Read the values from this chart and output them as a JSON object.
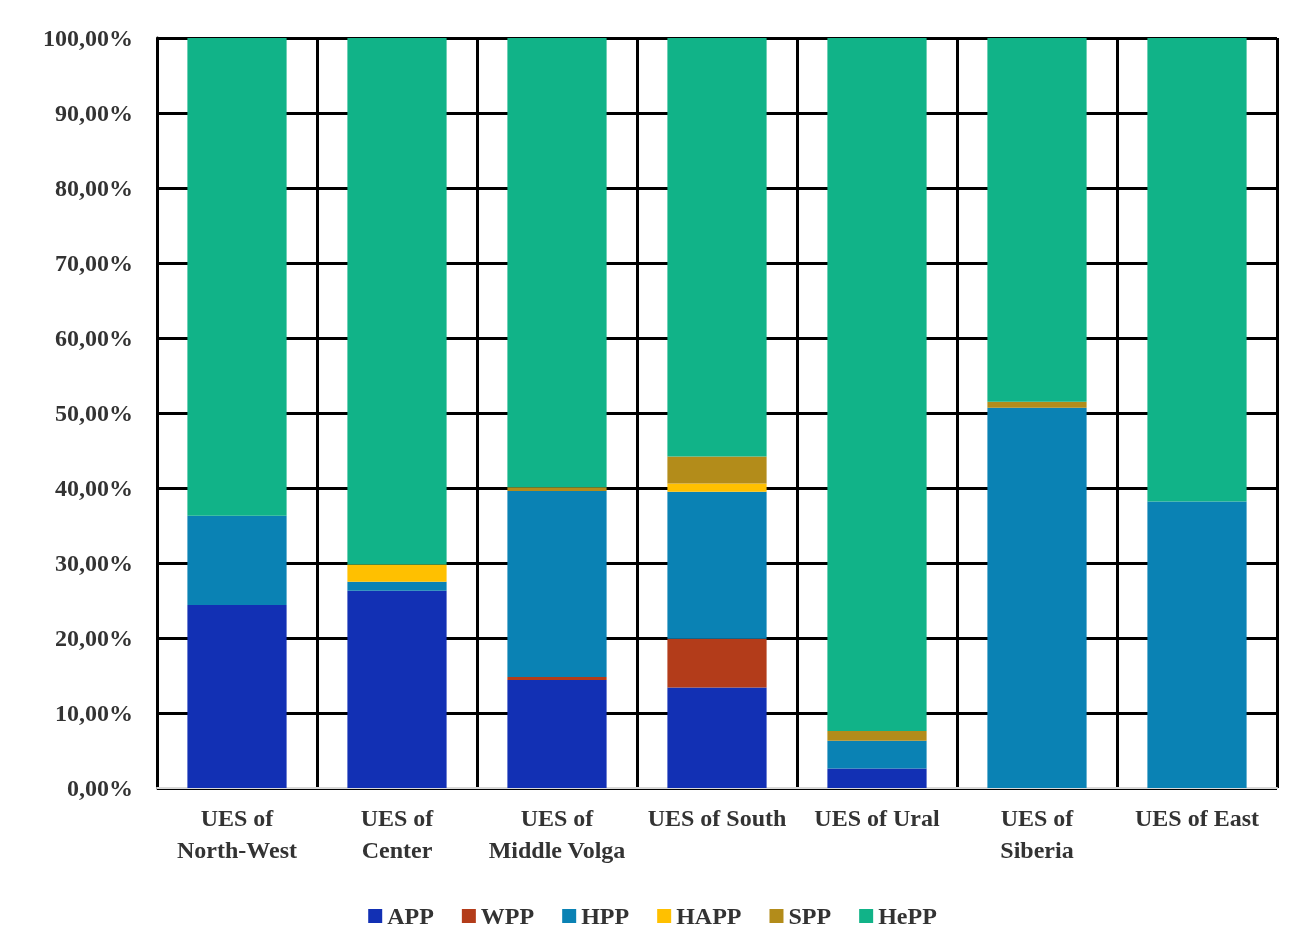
{
  "chart_data": {
    "type": "bar",
    "stacked": true,
    "categories": [
      "UES of\nNorth-West",
      "UES of\nCenter",
      "UES of\nMiddle Volga",
      "UES of South",
      "UES of Ural",
      "UES of\nSiberia",
      "UES of East"
    ],
    "series": [
      {
        "name": "APP",
        "color": "#1230b4",
        "values": [
          24.4,
          26.3,
          14.4,
          13.4,
          2.6,
          0,
          0
        ]
      },
      {
        "name": "WPP",
        "color": "#b33c1a",
        "values": [
          0,
          0,
          0.4,
          6.5,
          0,
          0,
          0
        ]
      },
      {
        "name": "HPP",
        "color": "#0a82b4",
        "values": [
          11.9,
          1.2,
          24.8,
          19.6,
          3.7,
          50.7,
          38.2
        ]
      },
      {
        "name": "HAPP",
        "color": "#ffc000",
        "values": [
          0,
          2.3,
          0,
          1.1,
          0,
          0,
          0
        ]
      },
      {
        "name": "SPP",
        "color": "#b38c1a",
        "values": [
          0,
          0,
          0.5,
          3.6,
          1.3,
          0.8,
          0
        ]
      },
      {
        "name": "HePP",
        "color": "#11b388",
        "values": [
          63.7,
          70.2,
          59.9,
          55.8,
          92.4,
          48.5,
          61.8
        ]
      }
    ],
    "ylim": [
      0,
      100
    ],
    "yticks": [
      {
        "value": 0,
        "label": "0,00%"
      },
      {
        "value": 10,
        "label": "10,00%"
      },
      {
        "value": 20,
        "label": "20,00%"
      },
      {
        "value": 30,
        "label": "30,00%"
      },
      {
        "value": 40,
        "label": "40,00%"
      },
      {
        "value": 50,
        "label": "50,00%"
      },
      {
        "value": 60,
        "label": "60,00%"
      },
      {
        "value": 70,
        "label": "70,00%"
      },
      {
        "value": 80,
        "label": "80,00%"
      },
      {
        "value": 90,
        "label": "90,00%"
      },
      {
        "value": 100,
        "label": "100,00%"
      }
    ],
    "grid": true,
    "legend": "bottom"
  }
}
